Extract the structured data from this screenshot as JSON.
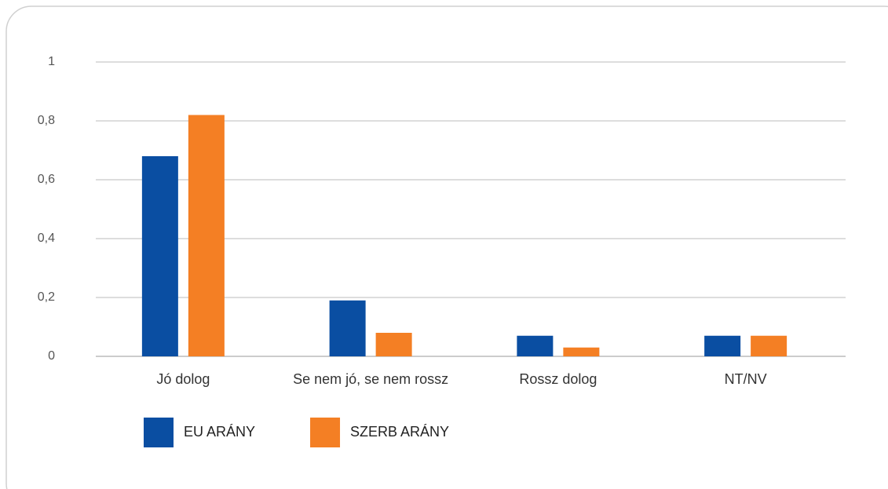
{
  "chart_data": {
    "type": "bar",
    "categories": [
      "Jó dolog",
      "Se nem jó, se nem rossz",
      "Rossz dolog",
      "NT/NV"
    ],
    "series": [
      {
        "name": "EU ARÁNY",
        "color": "#0a4ea2",
        "values": [
          0.68,
          0.19,
          0.07,
          0.07
        ]
      },
      {
        "name": "SZERB ARÁNY",
        "color": "#f47f24",
        "values": [
          0.82,
          0.08,
          0.03,
          0.07
        ]
      }
    ],
    "ylim": [
      0,
      1
    ],
    "yticks": [
      0,
      {
        "value": 0.2,
        "label": "0,2"
      },
      {
        "value": 0.4,
        "label": "0,4"
      },
      {
        "value": 0.6,
        "label": "0,6"
      },
      {
        "value": 0.8,
        "label": "0,8"
      },
      1
    ],
    "grid": true,
    "legend": "bottom-left"
  }
}
